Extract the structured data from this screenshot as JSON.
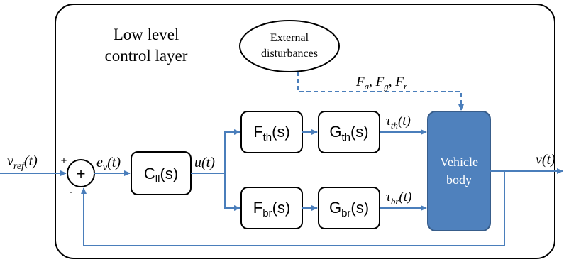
{
  "layer": {
    "title_line1": "Low level",
    "title_line2": "control layer"
  },
  "blocks": {
    "controller": {
      "main": "C",
      "sub": "ll",
      "arg": "(s)"
    },
    "f_th": {
      "main": "F",
      "sub": "th",
      "arg": "(s)"
    },
    "g_th": {
      "main": "G",
      "sub": "th",
      "arg": "(s)"
    },
    "f_br": {
      "main": "F",
      "sub": "br",
      "arg": "(s)"
    },
    "g_br": {
      "main": "G",
      "sub": "br",
      "arg": "(s)"
    },
    "vehicle_line1": "Vehicle",
    "vehicle_line2": "body",
    "disturbance_line1": "External",
    "disturbance_line2": "disturbances"
  },
  "signals": {
    "v_ref": {
      "main": "v",
      "sub": "ref",
      "arg": "(t)"
    },
    "error": {
      "main": "e",
      "sub": "v",
      "arg": "(t)"
    },
    "u": "u(t)",
    "tau_th": {
      "main": "τ",
      "sub": "th",
      "arg": "(t)"
    },
    "tau_br": {
      "main": "τ",
      "sub": "br",
      "arg": "(t)"
    },
    "v_out": "v(t)",
    "forces": {
      "f1": "F",
      "s1": "a",
      "sep1": ", ",
      "f2": "F",
      "s2": "g",
      "sep2": ", ",
      "f3": "F",
      "s3": "r"
    }
  },
  "summing_junction": {
    "symbol": "+",
    "plus_sign": "+",
    "minus_sign": "-"
  },
  "colors": {
    "line": "#4a7ebb",
    "vehicle_fill": "#4f81bd",
    "vehicle_stroke": "#385d8a",
    "vehicle_text": "#ffffff"
  }
}
